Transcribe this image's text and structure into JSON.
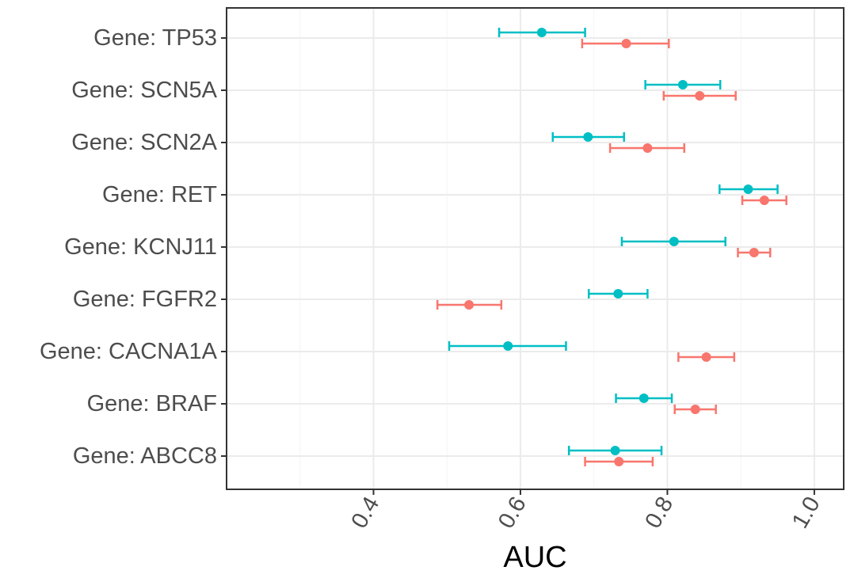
{
  "chart_data": {
    "type": "scatter",
    "subtype": "point-range / forest plot (horizontal error bars)",
    "title": "",
    "xlabel": "AUC",
    "ylabel": "",
    "xlim": [
      0.21,
      1.04
    ],
    "x_ticks": [
      0.4,
      0.6,
      0.8,
      1.0
    ],
    "x_tick_labels": [
      "0.4",
      "0.6",
      "0.8",
      "1.0"
    ],
    "x_tick_label_rotation_deg": -60,
    "categories": [
      "Gene: ABCC8",
      "Gene: BRAF",
      "Gene: CACNA1A",
      "Gene: FGFR2",
      "Gene: KCNJ11",
      "Gene: RET",
      "Gene: SCN2A",
      "Gene: SCN5A",
      "Gene: TP53"
    ],
    "grid": true,
    "legend": "none",
    "series": [
      {
        "color": "#F8766D",
        "offset": "below",
        "values": [
          0.734,
          0.838,
          0.853,
          0.53,
          0.918,
          0.932,
          0.773,
          0.844,
          0.744
        ],
        "lower": [
          0.688,
          0.81,
          0.815,
          0.487,
          0.896,
          0.902,
          0.722,
          0.795,
          0.684
        ],
        "upper": [
          0.78,
          0.866,
          0.891,
          0.574,
          0.94,
          0.962,
          0.823,
          0.893,
          0.802
        ]
      },
      {
        "color": "#00BFC4",
        "offset": "above",
        "values": [
          0.729,
          0.768,
          0.583,
          0.733,
          0.809,
          0.91,
          0.692,
          0.821,
          0.629
        ],
        "lower": [
          0.666,
          0.73,
          0.503,
          0.693,
          0.738,
          0.871,
          0.644,
          0.77,
          0.571
        ],
        "upper": [
          0.792,
          0.806,
          0.662,
          0.773,
          0.879,
          0.95,
          0.741,
          0.872,
          0.688
        ]
      }
    ]
  }
}
